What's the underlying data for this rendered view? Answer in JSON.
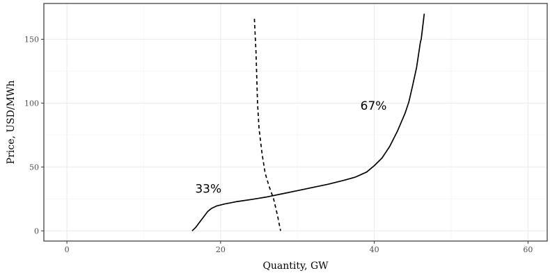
{
  "chart_data": {
    "type": "line",
    "xlabel": "Quantity, GW",
    "ylabel": "Price, USD/MWh",
    "xlim": [
      -3,
      62.5
    ],
    "ylim": [
      -8,
      178
    ],
    "x_ticks": [
      0,
      20,
      40,
      60
    ],
    "x_tick_labels": [
      "0",
      "20",
      "40",
      "60"
    ],
    "y_ticks": [
      0,
      50,
      100,
      150
    ],
    "y_tick_labels": [
      "0",
      "50",
      "100",
      "150"
    ],
    "grid": true,
    "series": [
      {
        "style": "solid",
        "color": "#000000",
        "x": [
          16.3,
          16.8,
          17.3,
          17.8,
          18.3,
          18.8,
          19.5,
          20.5,
          22,
          24,
          26,
          28,
          30,
          32,
          34,
          36,
          37.5,
          39,
          40,
          41,
          42,
          43,
          44,
          44.5,
          45,
          45.5,
          46,
          46.1,
          46.3,
          46.5
        ],
        "y": [
          0,
          3,
          7,
          11,
          15,
          17.5,
          19.5,
          21,
          22.8,
          24.5,
          26.5,
          29,
          31.5,
          34,
          36.5,
          39.5,
          42,
          46,
          51,
          57,
          66,
          78,
          92,
          101,
          114,
          128,
          148,
          150,
          160,
          170
        ]
      },
      {
        "style": "dashed",
        "color": "#000000",
        "x": [
          24.4,
          24.6,
          24.7,
          24.8,
          25,
          25.4,
          25.8,
          26.3,
          26.9,
          27.4,
          27.8
        ],
        "y": [
          166,
          140,
          120,
          100,
          80,
          60,
          45,
          35,
          25,
          12,
          0
        ]
      }
    ],
    "annotations": [
      {
        "text": "33%",
        "x": 18.4,
        "y": 33
      },
      {
        "text": "67%",
        "x": 39.9,
        "y": 98
      }
    ]
  }
}
